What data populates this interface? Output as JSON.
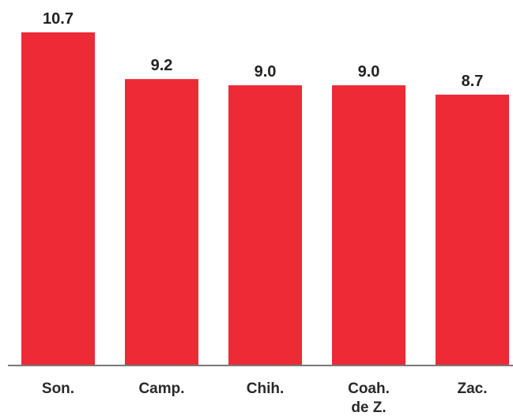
{
  "chart_data": {
    "type": "bar",
    "categories": [
      "Son.",
      "Camp.",
      "Chih.",
      "Coah.\nde Z.",
      "Zac."
    ],
    "values": [
      10.7,
      9.2,
      9.0,
      9.0,
      8.7
    ],
    "value_labels": [
      "10.7",
      "9.2",
      "9.0",
      "9.0",
      "8.7"
    ],
    "title": "",
    "xlabel": "",
    "ylabel": "",
    "ylim": [
      0,
      10.7
    ],
    "grid": false,
    "legend": "none",
    "bar_color": "#ED2A36",
    "axis_color": "#777777",
    "text_color": "#222222"
  }
}
